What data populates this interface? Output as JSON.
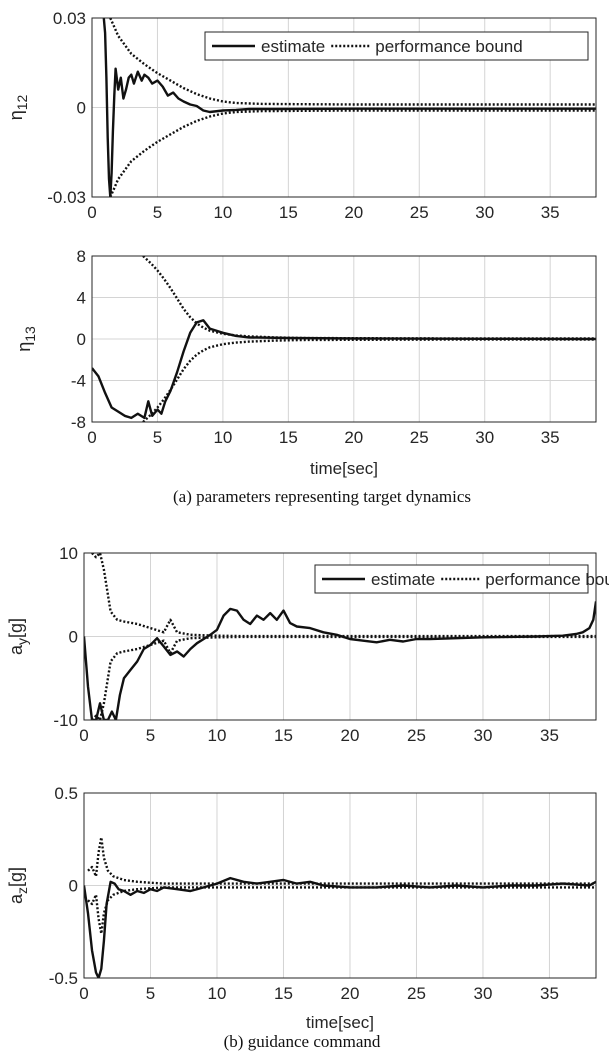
{
  "captions": {
    "a": "(a) parameters representing target dynamics",
    "b": "(b) guidance command"
  },
  "chart_data": [
    {
      "type": "line",
      "ylabel_main": "η",
      "ylabel_sub": "12",
      "xlabel": "",
      "xlim": [
        0,
        38.5
      ],
      "ylim": [
        -0.03,
        0.03
      ],
      "xticks": [
        "0",
        "5",
        "10",
        "15",
        "20",
        "25",
        "30",
        "35"
      ],
      "yticks": [
        "-0.03",
        "0",
        "0.03"
      ],
      "ytick_values": [
        -0.03,
        0,
        0.03
      ],
      "grid": true,
      "legend": "top-right",
      "series": [
        {
          "name": "estimate",
          "style": "solid",
          "x": [
            0.9,
            1.0,
            1.1,
            1.2,
            1.3,
            1.4,
            1.5,
            1.6,
            1.7,
            1.8,
            2.0,
            2.2,
            2.4,
            2.6,
            2.8,
            3.0,
            3.2,
            3.5,
            3.8,
            4.0,
            4.3,
            4.6,
            5.0,
            5.4,
            5.8,
            6.2,
            6.6,
            7.0,
            7.5,
            8.0,
            8.5,
            9.0,
            10.0,
            11.0,
            12.0,
            14.0,
            20.0,
            30.0,
            38.5
          ],
          "y": [
            0.03,
            0.025,
            0.01,
            -0.01,
            -0.024,
            -0.03,
            -0.022,
            -0.008,
            0.004,
            0.013,
            0.006,
            0.01,
            0.003,
            0.006,
            0.01,
            0.011,
            0.008,
            0.012,
            0.009,
            0.011,
            0.01,
            0.008,
            0.009,
            0.007,
            0.004,
            0.005,
            0.003,
            0.002,
            0.001,
            0.0005,
            -0.001,
            -0.0015,
            -0.001,
            -0.0008,
            -0.0005,
            -0.0005,
            -0.0004,
            -0.0004,
            -0.0004
          ]
        },
        {
          "name": "performance bound",
          "style": "dotted",
          "sign": 1,
          "x": [
            1.4,
            1.7,
            2.0,
            2.5,
            3.0,
            4.0,
            5.0,
            6.0,
            7.0,
            8.0,
            9.0,
            10.0,
            11.0,
            13.0,
            16.0,
            20.0,
            30.0,
            38.5
          ],
          "y": [
            0.03,
            0.027,
            0.024,
            0.021,
            0.018,
            0.0145,
            0.0115,
            0.009,
            0.0065,
            0.0045,
            0.003,
            0.002,
            0.0015,
            0.0012,
            0.0011,
            0.001,
            0.001,
            0.001
          ]
        },
        {
          "name": "performance bound",
          "style": "dotted",
          "sign": -1,
          "x": [
            1.4,
            1.7,
            2.0,
            2.5,
            3.0,
            4.0,
            5.0,
            6.0,
            7.0,
            8.0,
            9.0,
            10.0,
            11.0,
            13.0,
            16.0,
            20.0,
            30.0,
            38.5
          ],
          "y": [
            -0.03,
            -0.027,
            -0.024,
            -0.021,
            -0.018,
            -0.0145,
            -0.0115,
            -0.009,
            -0.0065,
            -0.0045,
            -0.003,
            -0.002,
            -0.0015,
            -0.0012,
            -0.0011,
            -0.001,
            -0.001,
            -0.001
          ]
        }
      ]
    },
    {
      "type": "line",
      "ylabel_main": "η",
      "ylabel_sub": "13",
      "xlabel": "time[sec]",
      "xlim": [
        0,
        38.5
      ],
      "ylim": [
        -8,
        8
      ],
      "xticks": [
        "0",
        "5",
        "10",
        "15",
        "20",
        "25",
        "30",
        "35"
      ],
      "yticks": [
        "-8",
        "-4",
        "0",
        "4",
        "8"
      ],
      "ytick_values": [
        -8,
        -4,
        0,
        4,
        8
      ],
      "grid": true,
      "legend": "none",
      "series": [
        {
          "name": "estimate",
          "style": "solid",
          "x": [
            0,
            0.5,
            1.0,
            1.5,
            2.0,
            2.5,
            3.0,
            3.5,
            4.0,
            4.3,
            4.6,
            5.0,
            5.3,
            5.6,
            6.0,
            6.5,
            7.0,
            7.5,
            8.0,
            8.5,
            9.0,
            10.0,
            11.0,
            12.0,
            15.0,
            20.0,
            30.0,
            38.5
          ],
          "y": [
            -2.8,
            -3.6,
            -5.2,
            -6.6,
            -7.0,
            -7.4,
            -7.6,
            -7.2,
            -7.6,
            -6.0,
            -7.4,
            -6.8,
            -7.2,
            -6.0,
            -5.0,
            -3.2,
            -1.2,
            0.6,
            1.6,
            1.8,
            1.0,
            0.6,
            0.3,
            0.15,
            0.1,
            0.05,
            0.02,
            0
          ]
        },
        {
          "name": "performance bound",
          "style": "dotted",
          "sign": 1,
          "x": [
            3.9,
            4.5,
            5.0,
            5.5,
            6.0,
            6.5,
            7.0,
            7.5,
            8.0,
            8.5,
            9.0,
            10.0,
            11.0,
            12.0,
            14.0,
            16.0,
            20.0,
            30.0,
            38.5
          ],
          "y": [
            8.0,
            7.3,
            6.6,
            5.8,
            4.9,
            3.9,
            2.9,
            2.1,
            1.5,
            1.1,
            0.8,
            0.5,
            0.35,
            0.25,
            0.15,
            0.1,
            0.08,
            0.05,
            0.05
          ]
        },
        {
          "name": "performance bound",
          "style": "dotted",
          "sign": -1,
          "x": [
            3.9,
            4.5,
            5.0,
            5.5,
            6.0,
            6.5,
            7.0,
            7.5,
            8.0,
            8.5,
            9.0,
            10.0,
            11.0,
            12.0,
            14.0,
            16.0,
            20.0,
            30.0,
            38.5
          ],
          "y": [
            -8.0,
            -7.3,
            -6.6,
            -5.8,
            -4.9,
            -3.9,
            -2.9,
            -2.1,
            -1.5,
            -1.1,
            -0.8,
            -0.5,
            -0.35,
            -0.25,
            -0.15,
            -0.1,
            -0.08,
            -0.05,
            -0.05
          ]
        }
      ]
    },
    {
      "type": "line",
      "ylabel_main": "a",
      "ylabel_sub": "y",
      "ylabel_unit": "[g]",
      "xlabel": "",
      "xlim": [
        0,
        38.5
      ],
      "ylim": [
        -10,
        10
      ],
      "xticks": [
        "0",
        "5",
        "10",
        "15",
        "20",
        "25",
        "30",
        "35"
      ],
      "yticks": [
        "-10",
        "0",
        "10"
      ],
      "ytick_values": [
        -10,
        0,
        10
      ],
      "grid": true,
      "legend": "top-right",
      "series": [
        {
          "name": "estimate",
          "style": "solid",
          "x": [
            0,
            0.3,
            0.6,
            0.9,
            1.2,
            1.5,
            1.8,
            2.1,
            2.4,
            2.7,
            3.0,
            3.5,
            4.0,
            4.5,
            5.0,
            5.5,
            6.0,
            6.5,
            7.0,
            7.5,
            8.0,
            8.5,
            9.0,
            9.5,
            10.0,
            10.5,
            11.0,
            11.5,
            12.0,
            12.5,
            13.0,
            13.5,
            14.0,
            14.5,
            15.0,
            15.5,
            16.0,
            17.0,
            18.0,
            19.0,
            20.0,
            21.0,
            22.0,
            23.0,
            24.0,
            25.0,
            26.0,
            28.0,
            30.0,
            32.0,
            34.0,
            35.0,
            36.0,
            37.0,
            37.5,
            38.0,
            38.3,
            38.5
          ],
          "y": [
            0,
            -6,
            -10,
            -10,
            -8,
            -10,
            -10,
            -9,
            -10,
            -7,
            -5,
            -4,
            -3,
            -1.5,
            -1,
            -0.2,
            -1.2,
            -2.2,
            -1.8,
            -2.4,
            -1.5,
            -0.8,
            -0.3,
            0.2,
            0.8,
            2.5,
            3.3,
            3.1,
            2.0,
            1.5,
            2.5,
            2.0,
            2.8,
            2.0,
            3.1,
            1.6,
            1.2,
            1.0,
            0.5,
            0.2,
            -0.3,
            -0.5,
            -0.7,
            -0.4,
            -0.6,
            -0.3,
            -0.3,
            -0.2,
            -0.1,
            -0.05,
            0,
            0.05,
            0.1,
            0.3,
            0.5,
            1.0,
            2.0,
            4.2
          ]
        },
        {
          "name": "performance bound",
          "style": "dotted",
          "sign": 1,
          "x": [
            0.6,
            0.9,
            1.2,
            1.5,
            2.0,
            2.5,
            3.0,
            4.0,
            5.0,
            6.0,
            6.5,
            7.0,
            8.0,
            10.0,
            12.0,
            15.0,
            20.0,
            25.0,
            30.0,
            35.0,
            38.5
          ],
          "y": [
            10,
            9.5,
            10,
            8,
            3,
            2,
            1.8,
            1.5,
            1.0,
            0.5,
            2.0,
            0.5,
            0.2,
            0.1,
            0.05,
            0.05,
            0.05,
            0.05,
            0.05,
            0.05,
            0.05
          ]
        },
        {
          "name": "performance bound",
          "style": "dotted",
          "sign": -1,
          "x": [
            0.6,
            0.9,
            1.2,
            1.5,
            2.0,
            2.5,
            3.0,
            4.0,
            5.0,
            6.0,
            6.5,
            7.0,
            8.0,
            10.0,
            12.0,
            15.0,
            20.0,
            25.0,
            30.0,
            35.0,
            38.5
          ],
          "y": [
            -10,
            -9.5,
            -10,
            -8,
            -3,
            -2,
            -1.8,
            -1.5,
            -1.0,
            -0.5,
            -2.0,
            -0.5,
            -0.2,
            -0.1,
            -0.05,
            -0.05,
            -0.05,
            -0.05,
            -0.05,
            -0.05,
            -0.05
          ]
        }
      ]
    },
    {
      "type": "line",
      "ylabel_main": "a",
      "ylabel_sub": "z",
      "ylabel_unit": "[g]",
      "xlabel": "time[sec]",
      "xlim": [
        0,
        38.5
      ],
      "ylim": [
        -0.5,
        0.5
      ],
      "xticks": [
        "0",
        "5",
        "10",
        "15",
        "20",
        "25",
        "30",
        "35"
      ],
      "yticks": [
        "-0.5",
        "0",
        "0.5"
      ],
      "ytick_values": [
        -0.5,
        0,
        0.5
      ],
      "grid": true,
      "legend": "none",
      "series": [
        {
          "name": "estimate",
          "style": "solid",
          "x": [
            0,
            0.3,
            0.6,
            0.9,
            1.1,
            1.3,
            1.5,
            1.7,
            2.0,
            2.3,
            2.6,
            3.0,
            3.5,
            4.0,
            4.5,
            5.0,
            5.5,
            6.0,
            7.0,
            8.0,
            9.0,
            10.0,
            11.0,
            12.0,
            13.0,
            14.0,
            15.0,
            16.0,
            17.0,
            18.0,
            20.0,
            22.0,
            24.0,
            26.0,
            28.0,
            30.0,
            32.0,
            34.0,
            36.0,
            38.0,
            38.5
          ],
          "y": [
            0,
            -0.15,
            -0.35,
            -0.47,
            -0.5,
            -0.45,
            -0.3,
            -0.1,
            0.02,
            0.01,
            -0.02,
            -0.03,
            -0.05,
            -0.03,
            -0.04,
            -0.02,
            -0.03,
            -0.01,
            -0.02,
            -0.03,
            -0.01,
            0.01,
            0.04,
            0.02,
            0.01,
            0.02,
            0.03,
            0.01,
            0.02,
            0.0,
            -0.01,
            -0.01,
            0.0,
            -0.01,
            0.0,
            -0.01,
            0.0,
            0.0,
            0.01,
            0.0,
            0.02
          ]
        },
        {
          "name": "performance bound",
          "style": "dotted",
          "sign": 1,
          "x": [
            0.3,
            0.6,
            0.9,
            1.1,
            1.3,
            1.5,
            1.8,
            2.2,
            2.6,
            3.0,
            4.0,
            5.0,
            6.0,
            8.0,
            10.0,
            12.0,
            15.0,
            20.0,
            30.0,
            38.5
          ],
          "y": [
            0.08,
            0.1,
            0.05,
            0.18,
            0.26,
            0.15,
            0.08,
            0.05,
            0.04,
            0.03,
            0.02,
            0.015,
            0.01,
            0.01,
            0.01,
            0.01,
            0.01,
            0.01,
            0.01,
            0.01
          ]
        },
        {
          "name": "performance bound",
          "style": "dotted",
          "sign": -1,
          "x": [
            0.3,
            0.6,
            0.9,
            1.1,
            1.3,
            1.5,
            1.8,
            2.2,
            2.6,
            3.0,
            4.0,
            5.0,
            6.0,
            8.0,
            10.0,
            12.0,
            15.0,
            20.0,
            30.0,
            38.5
          ],
          "y": [
            -0.08,
            -0.1,
            -0.05,
            -0.18,
            -0.26,
            -0.15,
            -0.08,
            -0.05,
            -0.04,
            -0.03,
            -0.02,
            -0.015,
            -0.01,
            -0.01,
            -0.01,
            -0.01,
            -0.01,
            -0.01,
            -0.01,
            -0.01
          ]
        }
      ]
    }
  ]
}
